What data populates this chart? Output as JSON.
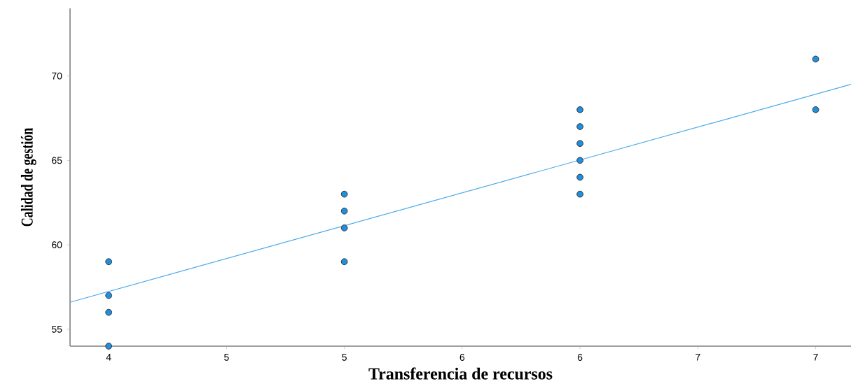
{
  "chart_data": {
    "type": "scatter",
    "xlabel": "Transferencia de recursos",
    "ylabel": "Calidad de gestión",
    "xlim": [
      3.836,
      7.15
    ],
    "ylim": [
      54,
      74
    ],
    "xticks": [
      {
        "value": 4,
        "label": "4"
      },
      {
        "value": 4.5,
        "label": "5"
      },
      {
        "value": 5,
        "label": "5"
      },
      {
        "value": 5.5,
        "label": "6"
      },
      {
        "value": 6,
        "label": "6"
      },
      {
        "value": 6.5,
        "label": "7"
      },
      {
        "value": 7,
        "label": "7"
      }
    ],
    "yticks": [
      55,
      60,
      65,
      70
    ],
    "grid": false,
    "series": [
      {
        "marker": "circle",
        "color": "#1f8fe0",
        "x": [
          4,
          4,
          4,
          4,
          5,
          5,
          5,
          5,
          6,
          6,
          6,
          6,
          6,
          6,
          7,
          7
        ],
        "values": [
          59,
          57,
          56,
          54,
          63,
          62,
          61,
          59,
          68,
          67,
          66,
          65,
          64,
          63,
          71,
          68
        ]
      },
      {
        "type": "line",
        "color": "#4aa8ea",
        "x": [
          3.836,
          7.15
        ],
        "values": [
          56.6,
          69.5
        ]
      }
    ]
  }
}
